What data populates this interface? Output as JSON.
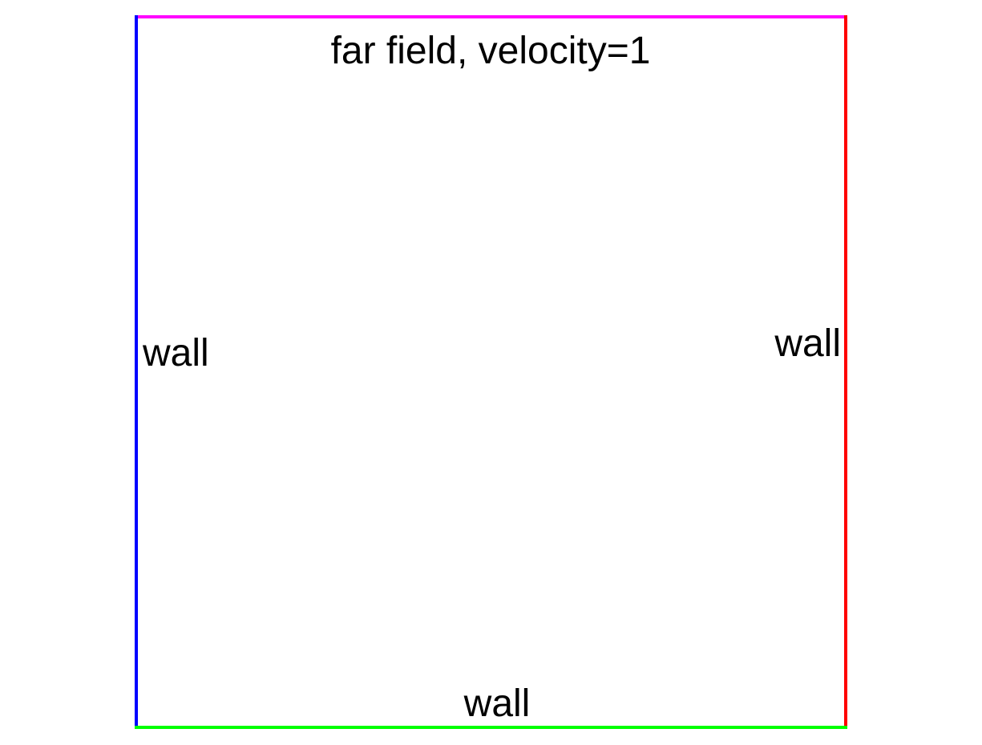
{
  "boundaries": {
    "top": {
      "label": "far field, velocity=1",
      "color": "#ff00ff"
    },
    "left": {
      "label": "wall",
      "color": "#0000ff"
    },
    "right": {
      "label": "wall",
      "color": "#ff0000"
    },
    "bottom": {
      "label": "wall",
      "color": "#00ff00"
    }
  }
}
